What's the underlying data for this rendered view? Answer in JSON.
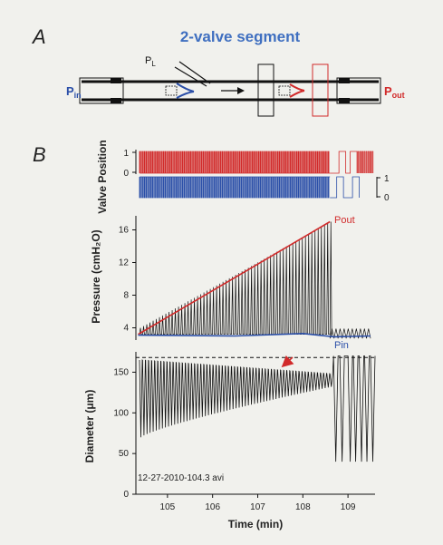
{
  "panel_a": {
    "letter": "A",
    "title": "2-valve segment",
    "label_pl_main": "P",
    "label_pl_sub": "L",
    "label_pin_main": "P",
    "label_pin_sub": "in",
    "label_pout_main": "P",
    "label_pout_sub": "out"
  },
  "panel_b": {
    "letter": "B",
    "file_label": "12-27-2010-104.3 avi"
  },
  "colors": {
    "inflow": "#2b4fa8",
    "outflow": "#d12a2a",
    "trace": "#111111",
    "title": "#3f6fc0"
  },
  "chart_data": [
    {
      "type": "line",
      "name": "valve-position",
      "ylabel": "Valve Position",
      "left_ticks": [
        "1",
        "0"
      ],
      "right_ticks": [
        "1",
        "0"
      ],
      "xlim": [
        104.3,
        109.6
      ],
      "series": [
        {
          "name": "outflow valve",
          "color": "#d12a2a",
          "levels": [
            0,
            1
          ]
        },
        {
          "name": "inflow valve",
          "color": "#2b4fa8",
          "levels": [
            0,
            1
          ]
        }
      ]
    },
    {
      "type": "line",
      "name": "pressure",
      "ylabel": "Pressure (cmH₂O)",
      "yticks": [
        4,
        8,
        12,
        16
      ],
      "ylim": [
        2.5,
        17.5
      ],
      "xlim": [
        104.3,
        109.6
      ],
      "series": [
        {
          "name": "Pout",
          "color": "#d12a2a",
          "points": [
            [
              104.35,
              3.2
            ],
            [
              108.6,
              17.0
            ]
          ]
        },
        {
          "name": "Pin",
          "color": "#2b4fa8",
          "points": [
            [
              104.35,
              3.1
            ],
            [
              106.5,
              3.0
            ],
            [
              108.0,
              3.3
            ],
            [
              108.7,
              2.9
            ],
            [
              109.5,
              3.0
            ]
          ]
        }
      ],
      "oscillation": {
        "low": 3.2,
        "high_start": 4.0,
        "high_end": 17.0,
        "end_time": 108.6,
        "after_amplitude": [
          2.7,
          3.9
        ]
      }
    },
    {
      "type": "line",
      "name": "diameter",
      "ylabel": "Diameter (μm)",
      "yticks": [
        0,
        50,
        100,
        150
      ],
      "ylim": [
        0,
        175
      ],
      "xlim": [
        104.3,
        109.6
      ],
      "xticks": [
        105,
        106,
        107,
        108,
        109
      ],
      "xlabel": "Time (min)",
      "reference_line": 168,
      "trace": {
        "max_start": 165,
        "max_end": 148,
        "min_start": 70,
        "min_end": 132,
        "end_time": 108.6,
        "late_min": 40,
        "late_max": 170
      }
    }
  ]
}
